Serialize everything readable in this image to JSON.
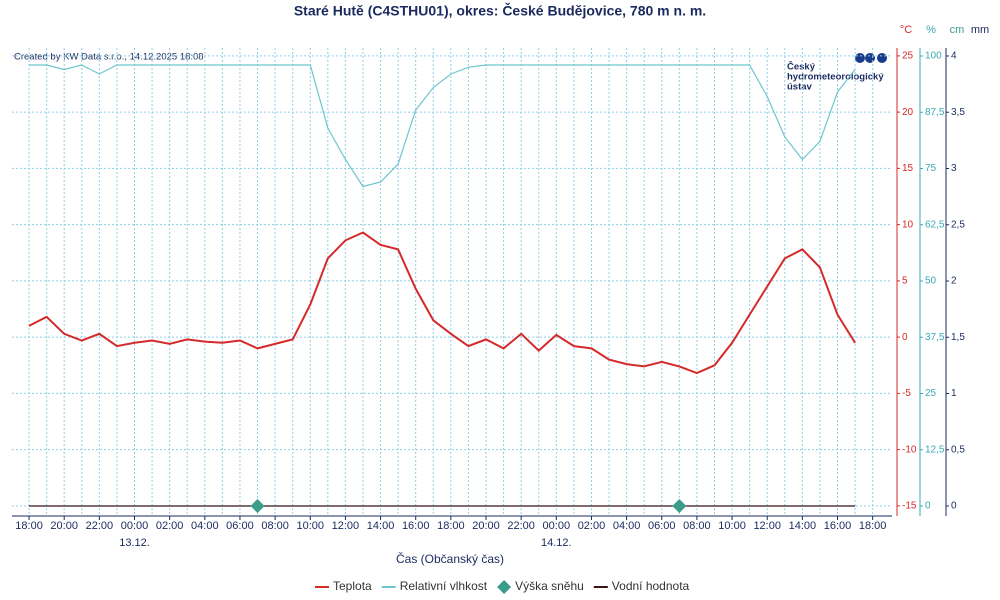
{
  "chart_data": {
    "type": "line",
    "title": "Staré Hutě (C4STHU01), okres: České Budějovice, 780 m n. m.",
    "credit": "Created by KW Data s.r.o., 14.12.2025 18:08",
    "logo_text": [
      "Český",
      "hydrometeorologický",
      "ústav"
    ],
    "x_label": "Čas (Občanský čas)",
    "y_unit": "°C",
    "y2_unit": "%",
    "y3_units": [
      "cm",
      "mm"
    ],
    "xlim": [
      -0.97,
      49.1
    ],
    "xticks": [
      {
        "value": 0,
        "label": "18:00"
      },
      {
        "value": 2,
        "label": "20:00"
      },
      {
        "value": 4,
        "label": "22:00"
      },
      {
        "value": 6,
        "label": "00:00"
      },
      {
        "value": 8,
        "label": "02:00"
      },
      {
        "value": 10,
        "label": "04:00"
      },
      {
        "value": 12,
        "label": "06:00"
      },
      {
        "value": 14,
        "label": "08:00"
      },
      {
        "value": 16,
        "label": "10:00"
      },
      {
        "value": 18,
        "label": "12:00"
      },
      {
        "value": 20,
        "label": "14:00"
      },
      {
        "value": 22,
        "label": "16:00"
      },
      {
        "value": 24,
        "label": "18:00"
      },
      {
        "value": 26,
        "label": "20:00"
      },
      {
        "value": 28,
        "label": "22:00"
      },
      {
        "value": 30,
        "label": "00:00"
      },
      {
        "value": 32,
        "label": "02:00"
      },
      {
        "value": 34,
        "label": "04:00"
      },
      {
        "value": 36,
        "label": "06:00"
      },
      {
        "value": 38,
        "label": "08:00"
      },
      {
        "value": 40,
        "label": "10:00"
      },
      {
        "value": 42,
        "label": "12:00"
      },
      {
        "value": 44,
        "label": "14:00"
      },
      {
        "value": 46,
        "label": "16:00"
      },
      {
        "value": 48,
        "label": "18:00"
      }
    ],
    "x_date_labels": [
      {
        "value": 6,
        "label": "13.12."
      },
      {
        "value": 30,
        "label": "14.12."
      }
    ],
    "ylim": [
      -15.9,
      25.7
    ],
    "yticks": [
      -15,
      -10,
      -5,
      0,
      5,
      10,
      15,
      20,
      25
    ],
    "y2lim": [
      -2.22,
      101.78
    ],
    "y2ticks": [
      0,
      {
        "value": 12.5,
        "label": "12,5"
      },
      25,
      {
        "value": 37.5,
        "label": "37,5"
      },
      50,
      {
        "value": 62.5,
        "label": "62,5"
      },
      75,
      {
        "value": 87.5,
        "label": "87,5"
      },
      100
    ],
    "y3lim": [
      -0.089,
      4.071
    ],
    "y3ticks": [
      0,
      {
        "value": 0.5,
        "label": "0,5"
      },
      1,
      {
        "value": 1.5,
        "label": "1,5"
      },
      2,
      {
        "value": 2.5,
        "label": "2,5"
      },
      3,
      {
        "value": 3.5,
        "label": "3,5"
      },
      4
    ],
    "grid": true,
    "x": [
      0,
      1,
      2,
      3,
      4,
      5,
      6,
      7,
      8,
      9,
      10,
      11,
      12,
      13,
      14,
      15,
      16,
      17,
      18,
      19,
      20,
      21,
      22,
      23,
      24,
      25,
      26,
      27,
      28,
      29,
      30,
      31,
      32,
      33,
      34,
      35,
      36,
      37,
      38,
      39,
      40,
      41,
      42,
      43,
      44,
      45,
      46,
      47
    ],
    "series": [
      {
        "name": "Teplota",
        "color": "#d42a2a",
        "values": [
          1.0,
          1.8,
          0.3,
          -0.3,
          0.3,
          -0.8,
          -0.5,
          -0.3,
          -0.6,
          -0.2,
          -0.4,
          -0.5,
          -0.3,
          -1.0,
          -0.6,
          -0.2,
          2.9,
          7.0,
          8.6,
          9.3,
          8.2,
          7.8,
          4.3,
          1.5,
          0.3,
          -0.8,
          -0.2,
          -1.0,
          0.3,
          -1.2,
          0.2,
          -0.8,
          -1.0,
          -2.0,
          -2.4,
          -2.6,
          -2.2,
          -2.6,
          -3.2,
          -2.5,
          -0.5,
          2.0,
          4.5,
          7.0,
          7.8,
          6.2,
          2.0,
          -0.5
        ]
      },
      {
        "name": "Relativní vlhkost",
        "color": "#6cc6cf",
        "axis": "y2",
        "values": [
          98,
          98,
          97,
          98,
          96,
          98,
          98,
          98,
          98,
          98,
          98,
          98,
          98,
          98,
          98,
          98,
          98,
          84,
          77,
          71,
          72,
          76,
          88,
          93,
          96,
          97.5,
          98,
          98,
          98,
          98,
          98,
          98,
          98,
          98,
          98,
          98,
          98,
          98,
          98,
          98,
          98,
          98,
          91,
          82,
          77,
          81,
          92,
          97
        ]
      },
      {
        "name": "Výška sněhu",
        "color": "#3a9d8a",
        "axis": "y3",
        "marker": "diamond",
        "x": [
          13,
          37
        ],
        "values": [
          0,
          0
        ]
      },
      {
        "name": "Vodní hodnota",
        "color": "#3b1414",
        "axis": "y3",
        "x": [
          0,
          47
        ],
        "values": [
          0,
          0
        ]
      }
    ]
  }
}
